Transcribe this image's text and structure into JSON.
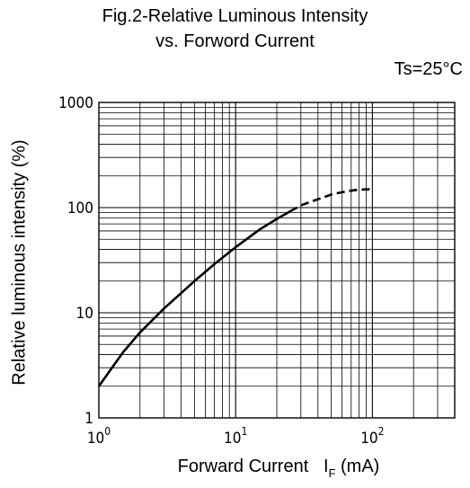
{
  "chart_data": {
    "type": "line",
    "title": "Fig.2-Relative Luminous Intensity",
    "subtitle": "vs. Forword Current",
    "condition": "Ts=25°C",
    "xlabel_main": "Forward Current",
    "xlabel_symbol": "I",
    "xlabel_sub": "F",
    "xlabel_unit": "(mA)",
    "ylabel": "Relative luminous intensity  (%)",
    "x_scale": "log",
    "y_scale": "log",
    "xlim": [
      1,
      400
    ],
    "ylim": [
      1,
      1000
    ],
    "grid": true,
    "x_ticks": [
      {
        "value": 1,
        "base": "10",
        "exp": "0"
      },
      {
        "value": 10,
        "base": "10",
        "exp": "1"
      },
      {
        "value": 100,
        "base": "10",
        "exp": "2"
      }
    ],
    "y_ticks": [
      {
        "value": 1,
        "label": "1"
      },
      {
        "value": 10,
        "label": "10"
      },
      {
        "value": 100,
        "label": "100"
      },
      {
        "value": 1000,
        "label": "1000"
      }
    ],
    "series": [
      {
        "style": "solid",
        "x": [
          1,
          1.5,
          2,
          3,
          5,
          7,
          10,
          15,
          20,
          25
        ],
        "y": [
          2,
          4.2,
          6.5,
          11,
          20,
          29,
          42,
          62,
          78,
          92
        ]
      },
      {
        "style": "dashed",
        "x": [
          25,
          30,
          40,
          50,
          60,
          70,
          80,
          100
        ],
        "y": [
          92,
          105,
          120,
          133,
          140,
          145,
          148,
          150
        ]
      }
    ]
  }
}
